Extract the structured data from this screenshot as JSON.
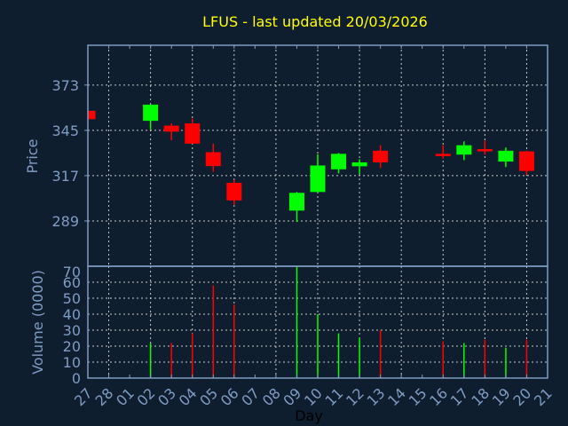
{
  "chart_data": [
    {
      "type": "candlestick",
      "title": "LFUS - last updated 20/03/2026",
      "ylabel": "Price",
      "xlabel": "",
      "ylim": [
        261,
        397.6
      ],
      "yticks": [
        289,
        317,
        345,
        373
      ],
      "grid": true,
      "x_labels": [
        "27",
        "28",
        "01",
        "02",
        "03",
        "04",
        "05",
        "06",
        "07",
        "08",
        "09",
        "10",
        "11",
        "12",
        "13",
        "14",
        "15",
        "16",
        "17",
        "18",
        "19",
        "20",
        "21"
      ],
      "candles": [
        {
          "day": "27",
          "open": 357.1,
          "high": 357.1,
          "low": 351.9,
          "close": 351.9
        },
        {
          "day": "02",
          "open": 350.9,
          "high": 361.0,
          "low": 345.6,
          "close": 360.9
        },
        {
          "day": "03",
          "open": 347.9,
          "high": 349.3,
          "low": 338.9,
          "close": 344.2
        },
        {
          "day": "04",
          "open": 349.3,
          "high": 352.2,
          "low": 336.8,
          "close": 336.8
        },
        {
          "day": "05",
          "open": 331.5,
          "high": 336.8,
          "low": 319.4,
          "close": 322.9
        },
        {
          "day": "06",
          "open": 312.6,
          "high": 314.4,
          "low": 299.1,
          "close": 301.7
        },
        {
          "day": "09",
          "open": 295.4,
          "high": 306.9,
          "low": 288.4,
          "close": 306.4
        },
        {
          "day": "10",
          "open": 306.9,
          "high": 330.2,
          "low": 306.9,
          "close": 323.3
        },
        {
          "day": "11",
          "open": 320.9,
          "high": 331.0,
          "low": 318.4,
          "close": 330.5
        },
        {
          "day": "12",
          "open": 322.8,
          "high": 327.1,
          "low": 318.0,
          "close": 325.2
        },
        {
          "day": "13",
          "open": 332.4,
          "high": 335.8,
          "low": 321.8,
          "close": 325.2
        },
        {
          "day": "16",
          "open": 330.5,
          "high": 335.8,
          "low": 327.6,
          "close": 329.1
        },
        {
          "day": "17",
          "open": 330.0,
          "high": 338.2,
          "low": 326.6,
          "close": 335.8
        },
        {
          "day": "18",
          "open": 333.4,
          "high": 338.7,
          "low": 330.0,
          "close": 332.0
        },
        {
          "day": "19",
          "open": 325.7,
          "high": 334.4,
          "low": 322.3,
          "close": 332.4
        },
        {
          "day": "20",
          "open": 332.0,
          "high": 332.4,
          "low": 317.5,
          "close": 319.9
        }
      ],
      "colors": {
        "up": "#00ff00",
        "down": "#ff0000"
      }
    },
    {
      "type": "bar",
      "ylabel": "Volume (0000)",
      "xlabel": "Day",
      "ylim": [
        0,
        70
      ],
      "yticks": [
        0,
        10,
        20,
        30,
        40,
        50,
        60,
        70
      ],
      "grid": true,
      "x_labels": [
        "27",
        "28",
        "01",
        "02",
        "03",
        "04",
        "05",
        "06",
        "07",
        "08",
        "09",
        "10",
        "11",
        "12",
        "13",
        "14",
        "15",
        "16",
        "17",
        "18",
        "19",
        "20",
        "21"
      ],
      "bars": [
        {
          "day": "02",
          "value": 22,
          "direction": "up"
        },
        {
          "day": "03",
          "value": 22,
          "direction": "down"
        },
        {
          "day": "04",
          "value": 28,
          "direction": "down"
        },
        {
          "day": "05",
          "value": 58,
          "direction": "down"
        },
        {
          "day": "06",
          "value": 46,
          "direction": "down"
        },
        {
          "day": "09",
          "value": 70,
          "direction": "up"
        },
        {
          "day": "10",
          "value": 40,
          "direction": "up"
        },
        {
          "day": "11",
          "value": 28,
          "direction": "up"
        },
        {
          "day": "12",
          "value": 25,
          "direction": "up"
        },
        {
          "day": "13",
          "value": 30,
          "direction": "down"
        },
        {
          "day": "16",
          "value": 23,
          "direction": "down"
        },
        {
          "day": "17",
          "value": 22,
          "direction": "up"
        },
        {
          "day": "18",
          "value": 24,
          "direction": "down"
        },
        {
          "day": "19",
          "value": 19,
          "direction": "up"
        },
        {
          "day": "20",
          "value": 24,
          "direction": "down"
        }
      ]
    }
  ],
  "colors": {
    "background": "#0f1e2e",
    "axis": "#7f9cc4",
    "grid": "#c8c8c8",
    "title": "#ffff00",
    "xlabel": "#000000"
  }
}
